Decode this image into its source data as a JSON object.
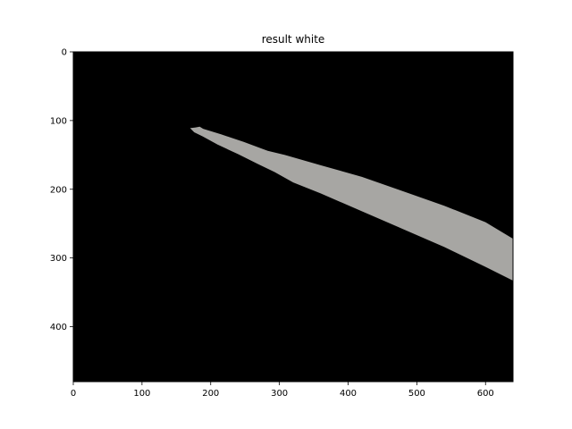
{
  "chart_data": {
    "type": "image",
    "title": "result white",
    "xlabel": "",
    "ylabel": "",
    "xlim": [
      0,
      640
    ],
    "ylim": [
      480,
      0
    ],
    "x_ticks": [
      0,
      100,
      200,
      300,
      400,
      500,
      600
    ],
    "y_ticks": [
      0,
      100,
      200,
      300,
      400
    ],
    "image_size": [
      640,
      480
    ],
    "background_color": "#000000",
    "mask_color": "#a7a6a3",
    "mask_polygon": [
      [
        170,
        111
      ],
      [
        178,
        110
      ],
      [
        184,
        109
      ],
      [
        189,
        112
      ],
      [
        215,
        120
      ],
      [
        248,
        131
      ],
      [
        272,
        140
      ],
      [
        283,
        144
      ],
      [
        308,
        150
      ],
      [
        360,
        165
      ],
      [
        420,
        182
      ],
      [
        480,
        203
      ],
      [
        540,
        224
      ],
      [
        600,
        248
      ],
      [
        640,
        272
      ],
      [
        640,
        333
      ],
      [
        600,
        313
      ],
      [
        540,
        284
      ],
      [
        480,
        258
      ],
      [
        420,
        232
      ],
      [
        360,
        206
      ],
      [
        320,
        190
      ],
      [
        293,
        175
      ],
      [
        268,
        163
      ],
      [
        240,
        149
      ],
      [
        210,
        135
      ],
      [
        188,
        123
      ],
      [
        176,
        117
      ]
    ]
  }
}
